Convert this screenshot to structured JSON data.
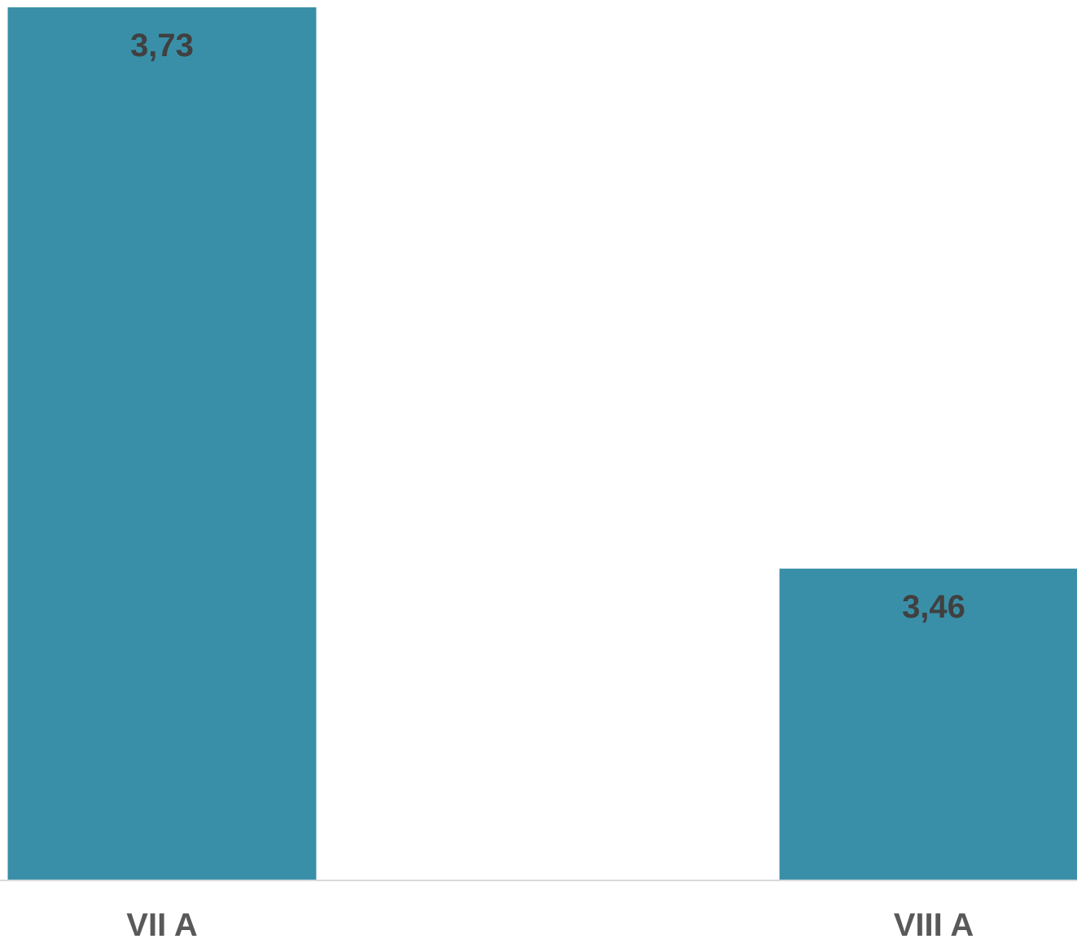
{
  "chart_data": {
    "type": "bar",
    "categories": [
      "VII A",
      "VIII A"
    ],
    "values": [
      3.73,
      3.46
    ],
    "data_labels": [
      "3,73",
      "3,46"
    ],
    "title": "",
    "xlabel": "",
    "ylabel": "",
    "ylim": [
      3.31,
      3.73
    ],
    "grid": false,
    "legend": "none",
    "colors": {
      "bar": "#3a8fa8",
      "axis": "#d9d9d9",
      "data_label": "#404040",
      "tick_label": "#595959"
    }
  }
}
